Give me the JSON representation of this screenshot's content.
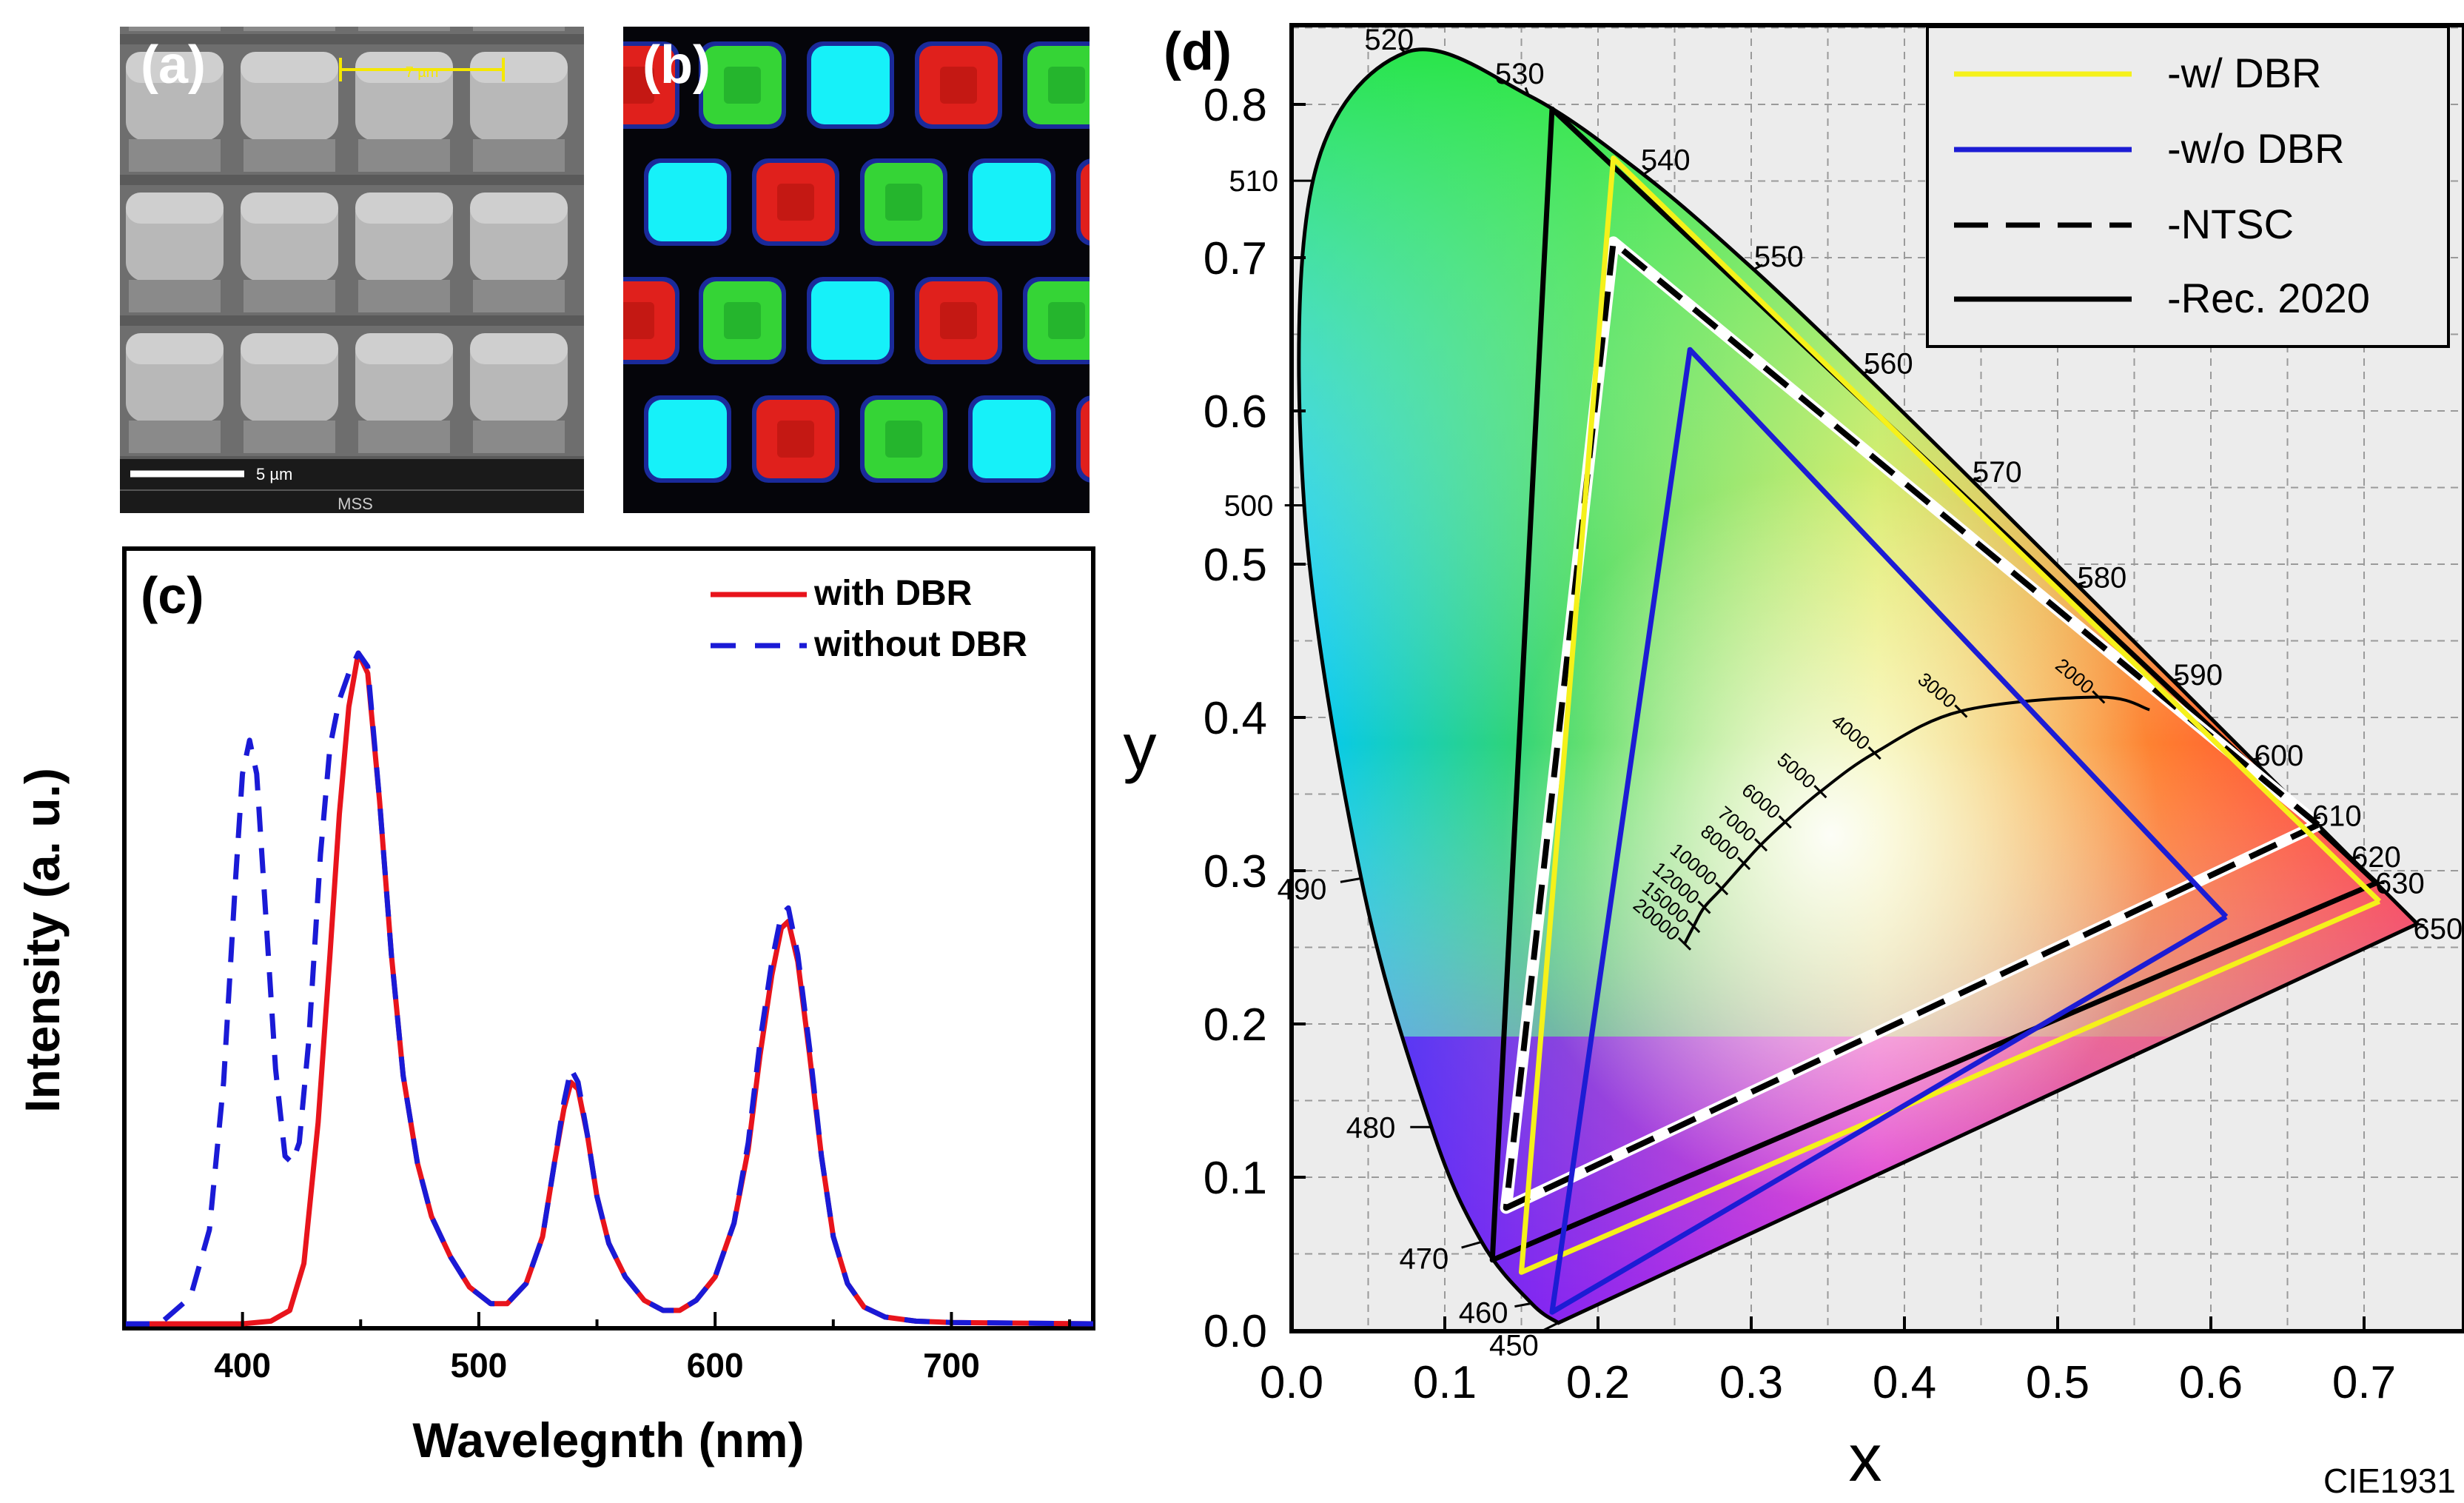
{
  "panels": {
    "a": {
      "label": "(a)",
      "scale_text": "7 µm",
      "scalebar_text": "5 µm",
      "footer_text": "MSS"
    },
    "b": {
      "label": "(b)"
    }
  },
  "chart_data": [
    {
      "id": "c",
      "type": "line",
      "panel_label": "(c)",
      "title": "",
      "xlabel": "Wavelegnth (nm)",
      "ylabel": "Intensity (a. u.)",
      "xlim": [
        350,
        760
      ],
      "ylim": [
        0,
        1.05
      ],
      "xticks": [
        400,
        500,
        600,
        700
      ],
      "yticks_shown": false,
      "legend": "top-right",
      "series": [
        {
          "name": "with DBR",
          "color": "#e8141c",
          "dash": "solid",
          "points": [
            [
              350,
              0
            ],
            [
              400,
              0
            ],
            [
              412,
              0.004
            ],
            [
              420,
              0.02
            ],
            [
              426,
              0.09
            ],
            [
              432,
              0.3
            ],
            [
              437,
              0.55
            ],
            [
              441,
              0.76
            ],
            [
              445,
              0.92
            ],
            [
              449,
              1.0
            ],
            [
              453,
              0.97
            ],
            [
              458,
              0.78
            ],
            [
              463,
              0.55
            ],
            [
              468,
              0.37
            ],
            [
              474,
              0.24
            ],
            [
              480,
              0.16
            ],
            [
              488,
              0.1
            ],
            [
              496,
              0.055
            ],
            [
              505,
              0.03
            ],
            [
              512,
              0.03
            ],
            [
              520,
              0.06
            ],
            [
              527,
              0.13
            ],
            [
              532,
              0.24
            ],
            [
              536,
              0.32
            ],
            [
              539,
              0.36
            ],
            [
              542,
              0.35
            ],
            [
              546,
              0.28
            ],
            [
              550,
              0.19
            ],
            [
              555,
              0.12
            ],
            [
              562,
              0.07
            ],
            [
              570,
              0.035
            ],
            [
              578,
              0.02
            ],
            [
              585,
              0.02
            ],
            [
              592,
              0.035
            ],
            [
              600,
              0.07
            ],
            [
              608,
              0.15
            ],
            [
              614,
              0.26
            ],
            [
              619,
              0.4
            ],
            [
              624,
              0.52
            ],
            [
              628,
              0.59
            ],
            [
              631,
              0.6
            ],
            [
              635,
              0.54
            ],
            [
              640,
              0.4
            ],
            [
              645,
              0.25
            ],
            [
              650,
              0.13
            ],
            [
              656,
              0.06
            ],
            [
              663,
              0.025
            ],
            [
              672,
              0.01
            ],
            [
              685,
              0.004
            ],
            [
              700,
              0.002
            ],
            [
              760,
              0
            ]
          ]
        },
        {
          "name": "without DBR",
          "color": "#1a1ad6",
          "dash": "dashed",
          "points": [
            [
              350,
              0
            ],
            [
              365,
              0
            ],
            [
              378,
              0.04
            ],
            [
              386,
              0.14
            ],
            [
              392,
              0.36
            ],
            [
              397,
              0.66
            ],
            [
              400,
              0.82
            ],
            [
              403,
              0.87
            ],
            [
              406,
              0.82
            ],
            [
              410,
              0.6
            ],
            [
              414,
              0.38
            ],
            [
              418,
              0.25
            ],
            [
              421,
              0.24
            ],
            [
              424,
              0.27
            ],
            [
              428,
              0.42
            ],
            [
              433,
              0.7
            ],
            [
              437,
              0.86
            ],
            [
              441,
              0.93
            ],
            [
              445,
              0.97
            ],
            [
              449,
              1.0
            ],
            [
              453,
              0.98
            ],
            [
              458,
              0.78
            ],
            [
              463,
              0.55
            ],
            [
              468,
              0.37
            ],
            [
              474,
              0.24
            ],
            [
              480,
              0.16
            ],
            [
              488,
              0.1
            ],
            [
              496,
              0.055
            ],
            [
              505,
              0.03
            ],
            [
              512,
              0.03
            ],
            [
              520,
              0.06
            ],
            [
              527,
              0.13
            ],
            [
              532,
              0.24
            ],
            [
              536,
              0.33
            ],
            [
              539,
              0.38
            ],
            [
              542,
              0.36
            ],
            [
              546,
              0.28
            ],
            [
              550,
              0.19
            ],
            [
              555,
              0.12
            ],
            [
              562,
              0.07
            ],
            [
              570,
              0.035
            ],
            [
              578,
              0.02
            ],
            [
              585,
              0.02
            ],
            [
              592,
              0.035
            ],
            [
              600,
              0.07
            ],
            [
              608,
              0.15
            ],
            [
              614,
              0.27
            ],
            [
              619,
              0.42
            ],
            [
              624,
              0.54
            ],
            [
              628,
              0.61
            ],
            [
              631,
              0.62
            ],
            [
              635,
              0.55
            ],
            [
              640,
              0.41
            ],
            [
              645,
              0.25
            ],
            [
              650,
              0.13
            ],
            [
              656,
              0.06
            ],
            [
              663,
              0.025
            ],
            [
              672,
              0.01
            ],
            [
              685,
              0.004
            ],
            [
              700,
              0.002
            ],
            [
              760,
              0
            ]
          ]
        }
      ]
    },
    {
      "id": "d",
      "type": "line",
      "panel_label": "(d)",
      "title": "",
      "xlabel": "x",
      "ylabel": "y",
      "xlim": [
        0,
        0.74
      ],
      "ylim": [
        0,
        0.855
      ],
      "xticks": [
        0.0,
        0.1,
        0.2,
        0.3,
        0.4,
        0.5,
        0.6,
        0.7
      ],
      "xtick_labels": [
        "0.0",
        "0.1",
        "0.2",
        "0.3",
        "0.4",
        "0.5",
        "0.6",
        "0.7"
      ],
      "yticks": [
        0.0,
        0.1,
        0.2,
        0.3,
        0.4,
        0.5,
        0.6,
        0.7,
        0.8
      ],
      "ytick_labels": [
        "0.0",
        "0.1",
        "0.2",
        "0.3",
        "0.4",
        "0.5",
        "0.6",
        "0.7",
        "0.8"
      ],
      "grid": true,
      "legend": "top-right",
      "footnote": "CIE1931",
      "locus": [
        [
          0.1741,
          0.005,
          "450"
        ],
        [
          0.1566,
          0.0177,
          "460"
        ],
        [
          0.1241,
          0.0578,
          "470"
        ],
        [
          0.0913,
          0.1327,
          "480"
        ],
        [
          0.0454,
          0.295,
          "490"
        ],
        [
          0.0082,
          0.5384,
          "500"
        ],
        [
          0.0139,
          0.7502,
          "510"
        ],
        [
          0.0743,
          0.8338,
          "520"
        ],
        [
          0.1547,
          0.8059,
          "530"
        ],
        [
          0.2296,
          0.7543,
          "540"
        ],
        [
          0.3016,
          0.6923,
          "550"
        ],
        [
          0.3731,
          0.6245,
          "560"
        ],
        [
          0.4441,
          0.5547,
          "570"
        ],
        [
          0.5125,
          0.4866,
          "580"
        ],
        [
          0.5752,
          0.4242,
          "590"
        ],
        [
          0.627,
          0.3725,
          "600"
        ],
        [
          0.6658,
          0.334,
          "610"
        ],
        [
          0.6915,
          0.3083,
          "620"
        ],
        [
          0.7079,
          0.292,
          "630"
        ],
        [
          0.7347,
          0.2653,
          "650"
        ]
      ],
      "planckian": [
        [
          0.2565,
          0.2523,
          "20000"
        ],
        [
          0.2624,
          0.2637,
          "15000"
        ],
        [
          0.2693,
          0.2761,
          "12000"
        ],
        [
          0.2807,
          0.2883,
          "10000"
        ],
        [
          0.2952,
          0.3048,
          "8000"
        ],
        [
          0.3063,
          0.3169,
          "7000"
        ],
        [
          0.3221,
          0.3318,
          "6000"
        ],
        [
          0.3451,
          0.3516,
          "5000"
        ],
        [
          0.3805,
          0.3768,
          "4000"
        ],
        [
          0.4369,
          0.4041,
          "3000"
        ],
        [
          0.5267,
          0.4133,
          "2000"
        ]
      ],
      "planckian_tail": [
        [
          0.56,
          0.405
        ]
      ],
      "series": [
        {
          "name": "-w/ DBR",
          "color": "#f5f11a",
          "dash": "solid",
          "points": [
            [
              0.71,
              0.28
            ],
            [
              0.21,
              0.765
            ],
            [
              0.15,
              0.038
            ],
            [
              0.71,
              0.28
            ]
          ]
        },
        {
          "name": "-w/o DBR",
          "color": "#1c1cd4",
          "dash": "solid",
          "points": [
            [
              0.61,
              0.27
            ],
            [
              0.26,
              0.64
            ],
            [
              0.17,
              0.012
            ],
            [
              0.61,
              0.27
            ]
          ]
        },
        {
          "name": "-NTSC",
          "color": "#000000",
          "dash": "dashed",
          "points": [
            [
              0.67,
              0.33
            ],
            [
              0.21,
              0.71
            ],
            [
              0.14,
              0.08
            ],
            [
              0.67,
              0.33
            ]
          ]
        },
        {
          "name": "-Rec. 2020",
          "color": "#000000",
          "dash": "solid",
          "points": [
            [
              0.708,
              0.292
            ],
            [
              0.17,
              0.797
            ],
            [
              0.131,
              0.046
            ],
            [
              0.708,
              0.292
            ]
          ]
        }
      ]
    }
  ]
}
